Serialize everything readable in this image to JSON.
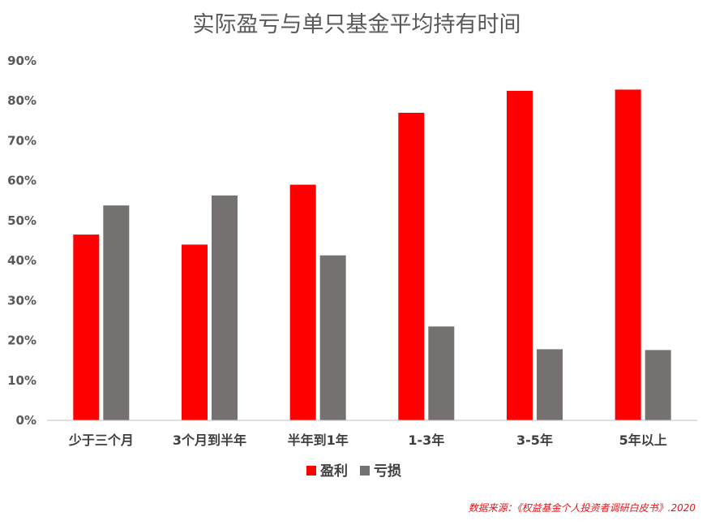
{
  "chart_data": {
    "type": "bar",
    "title": "实际盈亏与单只基金平均持有时间",
    "categories": [
      "少于三个月",
      "3个月到半年",
      "半年到1年",
      "1-3年",
      "3-5年",
      "5年以上"
    ],
    "series": [
      {
        "name": "盈利",
        "color": "#ff0000",
        "values": [
          46.5,
          44,
          59,
          77,
          82.5,
          82.8
        ]
      },
      {
        "name": "亏损",
        "color": "#767171",
        "values": [
          53.8,
          56.3,
          41.3,
          23.5,
          17.8,
          17.6
        ]
      }
    ],
    "ylim": [
      0,
      90
    ],
    "yticks": [
      0,
      10,
      20,
      30,
      40,
      50,
      60,
      70,
      80,
      90
    ],
    "ytick_labels": [
      "0%",
      "10%",
      "20%",
      "30%",
      "40%",
      "50%",
      "60%",
      "70%",
      "80%",
      "90%"
    ],
    "xlabel": "",
    "ylabel": "",
    "grid": false,
    "legend_position": "bottom-center",
    "source_note": "数据来源：《权益基金个人投资者调研白皮书》.2020"
  }
}
